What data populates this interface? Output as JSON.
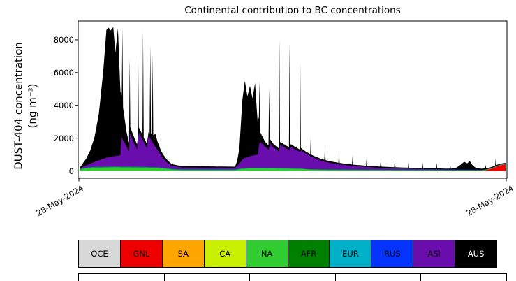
{
  "figure": {
    "title": "Continental contribution to BC concentrations",
    "y_axis": {
      "label_line1": "DUST-404 concentration",
      "label_line2": "(ng m⁻³)",
      "tick_labels": [
        "0",
        "2000",
        "4000",
        "6000",
        "8000"
      ]
    },
    "x_axis": {
      "tick_left": "28-May-2024",
      "tick_right": "28-May-2024"
    }
  },
  "legend": {
    "items": [
      {
        "label": "OCE",
        "text_color": "#000000"
      },
      {
        "label": "GNL",
        "text_color": "#000000"
      },
      {
        "label": "SA",
        "text_color": "#000000"
      },
      {
        "label": "CA",
        "text_color": "#000000"
      },
      {
        "label": "NA",
        "text_color": "#000000"
      },
      {
        "label": "AFR",
        "text_color": "#000000"
      },
      {
        "label": "EUR",
        "text_color": "#000000"
      },
      {
        "label": "RUS",
        "text_color": "#000000"
      },
      {
        "label": "ASI",
        "text_color": "#000000"
      },
      {
        "label": "AUS",
        "text_color": "#ffffff"
      }
    ]
  },
  "chart_data": {
    "type": "area",
    "stacked": true,
    "title": "Continental contribution to BC concentrations",
    "xlabel": "",
    "ylabel": "DUST-404 concentration (ng m⁻³)",
    "units": "ng m⁻³",
    "x_domain": [
      0,
      100
    ],
    "x_tick_labels": [
      "28-May-2024",
      "28-May-2024"
    ],
    "ylim": [
      -450,
      9150
    ],
    "yticks": [
      0,
      2000,
      4000,
      6000,
      8000
    ],
    "grid": false,
    "legend_position": "bottom",
    "series": [
      {
        "name": "OCE",
        "color": "#d8d8d8",
        "points": [
          [
            0,
            0
          ],
          [
            100,
            0
          ]
        ]
      },
      {
        "name": "GNL",
        "color": "#ee0000",
        "points": [
          [
            0,
            0
          ],
          [
            94.5,
            0
          ],
          [
            95.5,
            40
          ],
          [
            96.5,
            110
          ],
          [
            97.5,
            210
          ],
          [
            98.3,
            300
          ],
          [
            99.0,
            350
          ],
          [
            100,
            400
          ]
        ]
      },
      {
        "name": "SA",
        "color": "#ffa500",
        "points": [
          [
            0,
            0
          ],
          [
            100,
            0
          ]
        ]
      },
      {
        "name": "CA",
        "color": "#c8f000",
        "points": [
          [
            0,
            0
          ],
          [
            100,
            0
          ]
        ]
      },
      {
        "name": "NA",
        "color": "#32cd32",
        "points": [
          [
            0,
            60
          ],
          [
            1.0,
            140
          ],
          [
            3.0,
            200
          ],
          [
            8.0,
            220
          ],
          [
            14.0,
            210
          ],
          [
            18.0,
            180
          ],
          [
            20.0,
            140
          ],
          [
            22.0,
            70
          ],
          [
            24.0,
            55
          ],
          [
            36.5,
            50
          ],
          [
            38.0,
            120
          ],
          [
            40.0,
            150
          ],
          [
            44.0,
            150
          ],
          [
            48.0,
            140
          ],
          [
            52.0,
            120
          ],
          [
            54.0,
            80
          ],
          [
            58.0,
            60
          ],
          [
            64.0,
            50
          ],
          [
            72.0,
            42
          ],
          [
            80.0,
            36
          ],
          [
            88.0,
            32
          ],
          [
            94.0,
            28
          ],
          [
            100,
            25
          ]
        ]
      },
      {
        "name": "AFR",
        "color": "#008000",
        "points": [
          [
            0,
            25
          ],
          [
            22,
            25
          ],
          [
            23,
            12
          ],
          [
            36.5,
            12
          ],
          [
            37.5,
            22
          ],
          [
            52,
            22
          ],
          [
            53,
            10
          ],
          [
            100,
            8
          ]
        ]
      },
      {
        "name": "EUR",
        "color": "#00b0c8",
        "points": [
          [
            0,
            12
          ],
          [
            52,
            12
          ],
          [
            53,
            6
          ],
          [
            100,
            5
          ]
        ]
      },
      {
        "name": "RUS",
        "color": "#0533ff",
        "points": [
          [
            0,
            10
          ],
          [
            52,
            10
          ],
          [
            53,
            5
          ],
          [
            100,
            4
          ]
        ]
      },
      {
        "name": "ASI",
        "color": "#6a0dad",
        "points": [
          [
            0,
            30
          ],
          [
            1.5,
            120
          ],
          [
            3.5,
            300
          ],
          [
            5.5,
            480
          ],
          [
            7.0,
            600
          ],
          [
            9.0,
            650
          ],
          [
            9.6,
            700
          ],
          [
            9.8,
            1800
          ],
          [
            11.6,
            950
          ],
          [
            11.8,
            2000
          ],
          [
            13.5,
            1050
          ],
          [
            13.9,
            2100
          ],
          [
            15.8,
            1150
          ],
          [
            16.2,
            1900
          ],
          [
            18.0,
            1150
          ],
          [
            18.5,
            1000
          ],
          [
            19.5,
            600
          ],
          [
            20.5,
            350
          ],
          [
            21.5,
            200
          ],
          [
            24,
            120
          ],
          [
            36.5,
            110
          ],
          [
            37.5,
            300
          ],
          [
            38.5,
            600
          ],
          [
            40.0,
            700
          ],
          [
            41.8,
            800
          ],
          [
            42.3,
            1600
          ],
          [
            43.5,
            1300
          ],
          [
            44.4,
            1100
          ],
          [
            44.7,
            1500
          ],
          [
            45.5,
            1250
          ],
          [
            46.8,
            1000
          ],
          [
            47.1,
            1400
          ],
          [
            49.2,
            1100
          ],
          [
            49.5,
            1300
          ],
          [
            51.7,
            1000
          ],
          [
            52.0,
            1100
          ],
          [
            53.0,
            950
          ],
          [
            55.0,
            700
          ],
          [
            57.0,
            520
          ],
          [
            59.0,
            400
          ],
          [
            61.0,
            320
          ],
          [
            63.0,
            260
          ],
          [
            65.0,
            215
          ],
          [
            67.0,
            180
          ],
          [
            69.0,
            150
          ],
          [
            71.0,
            125
          ],
          [
            73.0,
            105
          ],
          [
            75.0,
            90
          ],
          [
            77.0,
            78
          ],
          [
            79.0,
            68
          ],
          [
            81.0,
            58
          ],
          [
            83.0,
            50
          ],
          [
            85.0,
            44
          ],
          [
            87.0,
            38
          ],
          [
            89.0,
            33
          ],
          [
            91.0,
            28
          ],
          [
            93.0,
            24
          ],
          [
            95.0,
            20
          ],
          [
            97.0,
            17
          ],
          [
            100,
            14
          ]
        ]
      },
      {
        "name": "AUS",
        "color": "#000000",
        "points": [
          [
            0,
            50
          ],
          [
            0.5,
            150
          ],
          [
            1.5,
            400
          ],
          [
            2.5,
            800
          ],
          [
            3.5,
            1500
          ],
          [
            4.5,
            2800
          ],
          [
            5.5,
            5200
          ],
          [
            6.3,
            7800
          ],
          [
            6.8,
            7900
          ],
          [
            7.3,
            7700
          ],
          [
            7.9,
            7900
          ],
          [
            8.4,
            6300
          ],
          [
            9.0,
            7800
          ],
          [
            9.6,
            3800
          ],
          [
            9.9,
            2500
          ],
          [
            10.05,
            6800
          ],
          [
            10.2,
            2000
          ],
          [
            11.0,
            900
          ],
          [
            11.6,
            500
          ],
          [
            11.75,
            4900
          ],
          [
            11.9,
            450
          ],
          [
            12.8,
            350
          ],
          [
            13.6,
            300
          ],
          [
            13.75,
            5100
          ],
          [
            13.9,
            300
          ],
          [
            14.75,
            280
          ],
          [
            14.9,
            6700
          ],
          [
            15.05,
            270
          ],
          [
            16.0,
            250
          ],
          [
            16.45,
            250
          ],
          [
            16.6,
            5700
          ],
          [
            16.75,
            400
          ],
          [
            17.0,
            400
          ],
          [
            17.15,
            5400
          ],
          [
            17.3,
            500
          ],
          [
            17.8,
            800
          ],
          [
            18.3,
            500
          ],
          [
            19.0,
            300
          ],
          [
            20.0,
            200
          ],
          [
            21.0,
            130
          ],
          [
            22,
            90
          ],
          [
            36.5,
            60
          ],
          [
            37.0,
            300
          ],
          [
            37.5,
            900
          ],
          [
            38.2,
            3600
          ],
          [
            38.8,
            4700
          ],
          [
            39.4,
            3700
          ],
          [
            40.0,
            4300
          ],
          [
            40.6,
            3500
          ],
          [
            41.2,
            4400
          ],
          [
            41.8,
            2000
          ],
          [
            42.1,
            1800
          ],
          [
            42.25,
            3800
          ],
          [
            42.4,
            600
          ],
          [
            43.5,
            300
          ],
          [
            44.35,
            250
          ],
          [
            44.5,
            3650
          ],
          [
            44.65,
            250
          ],
          [
            45.5,
            200
          ],
          [
            46.75,
            180
          ],
          [
            46.9,
            6700
          ],
          [
            47.05,
            180
          ],
          [
            48.0,
            170
          ],
          [
            49.15,
            160
          ],
          [
            49.3,
            6500
          ],
          [
            49.45,
            160
          ],
          [
            50.3,
            150
          ],
          [
            51.65,
            140
          ],
          [
            51.8,
            5450
          ],
          [
            51.95,
            140
          ],
          [
            52.3,
            130
          ],
          [
            54.15,
            120
          ],
          [
            54.3,
            1400
          ],
          [
            54.45,
            120
          ],
          [
            57.45,
            100
          ],
          [
            57.6,
            950
          ],
          [
            57.75,
            100
          ],
          [
            60.75,
            90
          ],
          [
            60.9,
            780
          ],
          [
            61.05,
            90
          ],
          [
            63.95,
            80
          ],
          [
            64.1,
            630
          ],
          [
            64.25,
            80
          ],
          [
            67.25,
            75
          ],
          [
            67.4,
            590
          ],
          [
            67.55,
            75
          ],
          [
            70.55,
            70
          ],
          [
            70.7,
            540
          ],
          [
            70.85,
            70
          ],
          [
            73.85,
            65
          ],
          [
            74.0,
            490
          ],
          [
            74.15,
            65
          ],
          [
            77.05,
            60
          ],
          [
            77.2,
            440
          ],
          [
            77.35,
            60
          ],
          [
            80.35,
            55
          ],
          [
            80.5,
            405
          ],
          [
            80.65,
            55
          ],
          [
            83.65,
            50
          ],
          [
            83.8,
            370
          ],
          [
            83.95,
            50
          ],
          [
            86.85,
            45
          ],
          [
            87.0,
            335
          ],
          [
            87.15,
            45
          ],
          [
            88.5,
            120
          ],
          [
            89.5,
            300
          ],
          [
            90.3,
            480
          ],
          [
            91.0,
            380
          ],
          [
            91.6,
            520
          ],
          [
            92.3,
            250
          ],
          [
            93.0,
            120
          ],
          [
            94.0,
            70
          ],
          [
            95.15,
            60
          ],
          [
            95.3,
            260
          ],
          [
            95.45,
            55
          ],
          [
            96.0,
            50
          ],
          [
            97.0,
            45
          ],
          [
            97.55,
            45
          ],
          [
            97.7,
            500
          ],
          [
            97.85,
            45
          ],
          [
            98.5,
            40
          ],
          [
            99.3,
            35
          ],
          [
            100,
            30
          ]
        ]
      }
    ]
  }
}
